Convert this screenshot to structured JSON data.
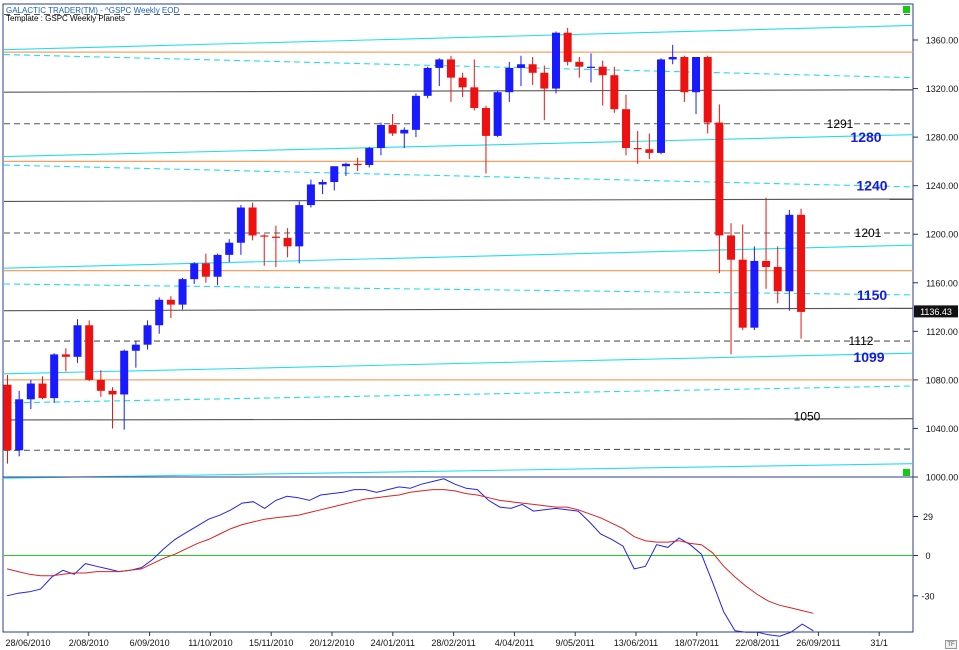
{
  "header": {
    "line1": "GALACTIC TRADER(TM) -  ^GSPC Weekly EOD",
    "line2": "Template : GSPC Weekly Planets"
  },
  "tf_button": "TF",
  "colors": {
    "up": "#1a1aff",
    "down": "#ee1111",
    "cyan": "#22ddee",
    "orange": "#f5a060",
    "gray": "#555555",
    "osc_fast": "#2222ee",
    "osc_slow": "#dd2222",
    "zero_line": "#22cc22"
  },
  "chart_data": [
    {
      "type": "candlestick",
      "title": "^GSPC Weekly",
      "ylim": [
        1000,
        1380
      ],
      "y_ticks": [
        "1360.00",
        "1320.00",
        "1280.00",
        "1240.00",
        "1200.00",
        "1160.00",
        "1120.00",
        "1080.00",
        "1040.00",
        "1000.00"
      ],
      "last_price": "1136.43",
      "x_tick_labels": [
        "28/06/2010",
        "2/08/2010",
        "6/09/2010",
        "11/10/2010",
        "15/11/2010",
        "20/12/2010",
        "24/01/2011",
        "28/02/2011",
        "4/04/2011",
        "9/05/2011",
        "13/06/2011",
        "18/07/2011",
        "22/08/2011",
        "26/09/2011",
        "31/1"
      ],
      "candles": [
        [
          1076,
          1084,
          1011,
          1022
        ],
        [
          1022,
          1071,
          1017,
          1064
        ],
        [
          1064,
          1080,
          1056,
          1077
        ],
        [
          1077,
          1083,
          1064,
          1065
        ],
        [
          1065,
          1102,
          1061,
          1101
        ],
        [
          1101,
          1106,
          1087,
          1099
        ],
        [
          1099,
          1130,
          1094,
          1125
        ],
        [
          1125,
          1129,
          1079,
          1080
        ],
        [
          1080,
          1088,
          1066,
          1071
        ],
        [
          1071,
          1074,
          1040,
          1068
        ],
        [
          1068,
          1105,
          1039,
          1104
        ],
        [
          1104,
          1112,
          1090,
          1109
        ],
        [
          1109,
          1129,
          1105,
          1125
        ],
        [
          1125,
          1148,
          1118,
          1146
        ],
        [
          1146,
          1149,
          1131,
          1142
        ],
        [
          1142,
          1164,
          1138,
          1163
        ],
        [
          1163,
          1177,
          1159,
          1176
        ],
        [
          1176,
          1184,
          1160,
          1165
        ],
        [
          1165,
          1184,
          1158,
          1183
        ],
        [
          1183,
          1196,
          1177,
          1193
        ],
        [
          1193,
          1224,
          1183,
          1222
        ],
        [
          1222,
          1226,
          1195,
          1199
        ],
        [
          1199,
          1200,
          1174,
          1198
        ],
        [
          1198,
          1207,
          1173,
          1197
        ],
        [
          1197,
          1205,
          1181,
          1190
        ],
        [
          1190,
          1227,
          1176,
          1224
        ],
        [
          1224,
          1245,
          1222,
          1241
        ],
        [
          1241,
          1245,
          1233,
          1243
        ],
        [
          1243,
          1256,
          1236,
          1256
        ],
        [
          1256,
          1259,
          1248,
          1258
        ],
        [
          1258,
          1263,
          1252,
          1257
        ],
        [
          1257,
          1272,
          1255,
          1271
        ],
        [
          1271,
          1292,
          1265,
          1290
        ],
        [
          1290,
          1299,
          1281,
          1283
        ],
        [
          1283,
          1288,
          1271,
          1286
        ],
        [
          1286,
          1316,
          1280,
          1314
        ],
        [
          1314,
          1338,
          1312,
          1337
        ],
        [
          1337,
          1345,
          1322,
          1344
        ],
        [
          1344,
          1347,
          1309,
          1329
        ],
        [
          1329,
          1333,
          1313,
          1321
        ],
        [
          1321,
          1344,
          1302,
          1304
        ],
        [
          1304,
          1306,
          1250,
          1281
        ],
        [
          1281,
          1318,
          1280,
          1317
        ],
        [
          1317,
          1342,
          1309,
          1337
        ],
        [
          1337,
          1347,
          1322,
          1340
        ],
        [
          1340,
          1346,
          1323,
          1333
        ],
        [
          1333,
          1339,
          1294,
          1320
        ],
        [
          1320,
          1367,
          1316,
          1366
        ],
        [
          1366,
          1370,
          1339,
          1342
        ],
        [
          1342,
          1346,
          1329,
          1338
        ],
        [
          1338,
          1349,
          1325,
          1338
        ],
        [
          1338,
          1343,
          1306,
          1331
        ],
        [
          1331,
          1338,
          1300,
          1303
        ],
        [
          1303,
          1315,
          1265,
          1271
        ],
        [
          1271,
          1285,
          1258,
          1270
        ],
        [
          1270,
          1283,
          1262,
          1267
        ],
        [
          1267,
          1345,
          1266,
          1344
        ],
        [
          1344,
          1356,
          1340,
          1346
        ],
        [
          1346,
          1347,
          1309,
          1317
        ],
        [
          1317,
          1346,
          1299,
          1346
        ],
        [
          1346,
          1347,
          1283,
          1292
        ],
        [
          1292,
          1307,
          1168,
          1199
        ],
        [
          1199,
          1209,
          1101,
          1179
        ],
        [
          1179,
          1208,
          1121,
          1123
        ],
        [
          1123,
          1190,
          1121,
          1178
        ],
        [
          1178,
          1230,
          1155,
          1173
        ],
        [
          1173,
          1190,
          1143,
          1153
        ],
        [
          1153,
          1220,
          1137,
          1216
        ],
        [
          1216,
          1221,
          1114,
          1136
        ]
      ],
      "support_resistance": [
        {
          "label": "1291",
          "value": 1291
        },
        {
          "label": "1280",
          "value": 1280
        },
        {
          "label": "1240",
          "value": 1240
        },
        {
          "label": "1201",
          "value": 1201
        },
        {
          "label": "1150",
          "value": 1150
        },
        {
          "label": "1112",
          "value": 1112
        },
        {
          "label": "1099",
          "value": 1099
        },
        {
          "label": "1050",
          "value": 1050
        }
      ],
      "planet_lines": [
        {
          "color": "cyan",
          "style": "solid",
          "y0": 1085,
          "y1": 1102
        },
        {
          "color": "cyan",
          "style": "dashed",
          "y0": 1061,
          "y1": 1075
        },
        {
          "color": "cyan",
          "style": "solid",
          "y0": 1172,
          "y1": 1191
        },
        {
          "color": "cyan",
          "style": "dashed",
          "y0": 1159,
          "y1": 1150
        },
        {
          "color": "cyan",
          "style": "solid",
          "y0": 1264,
          "y1": 1282
        },
        {
          "color": "cyan",
          "style": "dashed",
          "y0": 1257,
          "y1": 1239
        },
        {
          "color": "cyan",
          "style": "solid",
          "y0": 1352,
          "y1": 1372
        },
        {
          "color": "cyan",
          "style": "dashed",
          "y0": 1348,
          "y1": 1329
        },
        {
          "color": "cyan",
          "style": "solid",
          "y0": 999,
          "y1": 1011
        },
        {
          "color": "orange",
          "style": "solid",
          "y0": 1080,
          "y1": 1080
        },
        {
          "color": "orange",
          "style": "solid",
          "y0": 1170,
          "y1": 1170
        },
        {
          "color": "orange",
          "style": "solid",
          "y0": 1260,
          "y1": 1260
        },
        {
          "color": "orange",
          "style": "solid",
          "y0": 1350,
          "y1": 1350
        },
        {
          "color": "gray",
          "style": "solid",
          "y0": 1047,
          "y1": 1048
        },
        {
          "color": "gray",
          "style": "solid",
          "y0": 1137,
          "y1": 1139
        },
        {
          "color": "gray",
          "style": "solid",
          "y0": 1227,
          "y1": 1229
        },
        {
          "color": "gray",
          "style": "solid",
          "y0": 1317,
          "y1": 1319
        },
        {
          "color": "gray",
          "style": "dashed",
          "y0": 1022,
          "y1": 1023
        },
        {
          "color": "gray",
          "style": "dashed",
          "y0": 1112,
          "y1": 1112
        },
        {
          "color": "gray",
          "style": "dashed",
          "y0": 1201,
          "y1": 1201
        },
        {
          "color": "gray",
          "style": "dashed",
          "y0": 1291,
          "y1": 1291
        },
        {
          "color": "gray",
          "style": "dashed",
          "y0": 1381,
          "y1": 1381
        }
      ]
    },
    {
      "type": "line",
      "title": "Oscillator",
      "ylim": [
        -58,
        50
      ],
      "y_ticks": [
        "29",
        "0",
        "-30"
      ],
      "zero_line": 0,
      "series": [
        {
          "color": "osc_fast",
          "values": [
            -30,
            -28,
            -27,
            -25,
            -16,
            -11,
            -14,
            -6,
            -8,
            -10,
            -12,
            -11,
            -9,
            -3,
            5,
            12,
            17,
            22,
            27,
            30,
            34,
            39,
            40,
            35,
            41,
            44,
            43,
            41,
            45,
            46,
            47,
            49,
            49,
            47,
            49,
            51,
            50,
            53,
            55,
            57,
            53,
            50,
            49,
            41,
            36,
            35,
            38,
            33,
            34,
            35,
            34,
            33,
            25,
            16,
            12,
            7,
            -10,
            -8,
            8,
            6,
            13,
            8,
            1,
            -20,
            -42,
            -56,
            -57,
            -57,
            -59,
            -60,
            -57,
            -51,
            -56
          ]
        },
        {
          "color": "osc_slow",
          "values": [
            -10,
            -12,
            -14,
            -15,
            -15,
            -14,
            -13,
            -13,
            -12,
            -12,
            -12,
            -11,
            -10,
            -6,
            -2,
            1,
            5,
            9,
            12,
            16,
            20,
            23,
            25,
            27,
            28,
            29,
            30,
            32,
            34,
            36,
            38,
            40,
            42,
            43,
            44,
            45,
            47,
            48,
            49,
            49,
            48,
            46,
            45,
            43,
            41,
            40,
            39,
            38,
            37,
            36,
            36,
            34,
            31,
            28,
            24,
            20,
            14,
            11,
            10,
            10,
            11,
            9,
            8,
            2,
            -8,
            -16,
            -23,
            -29,
            -34,
            -37,
            -39,
            -41,
            -43
          ]
        }
      ]
    }
  ]
}
